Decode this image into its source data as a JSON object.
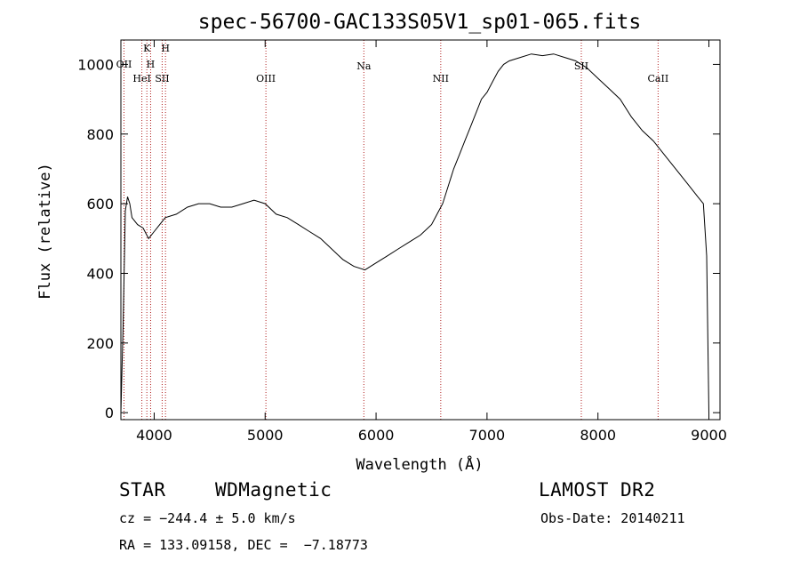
{
  "chart_data": {
    "type": "line",
    "title": "spec-56700-GAC133S05V1_sp01-065.fits",
    "xlabel": "Wavelength (Å)",
    "ylabel": "Flux (relative)",
    "xlim": [
      3700,
      9100
    ],
    "ylim": [
      -20,
      1070
    ],
    "xticks": [
      "4000",
      "5000",
      "6000",
      "7000",
      "8000",
      "9000"
    ],
    "yticks": [
      "0",
      "200",
      "400",
      "600",
      "800",
      "1000"
    ],
    "series": [
      {
        "x": [
          3700,
          3720,
          3740,
          3760,
          3780,
          3800,
          3850,
          3900,
          3950,
          4000,
          4100,
          4200,
          4300,
          4400,
          4500,
          4600,
          4700,
          4800,
          4900,
          5000,
          5100,
          5200,
          5300,
          5400,
          5500,
          5600,
          5700,
          5800,
          5900,
          6000,
          6100,
          6200,
          6300,
          6400,
          6500,
          6550,
          6600,
          6650,
          6700,
          6750,
          6800,
          6850,
          6900,
          6950,
          7000,
          7050,
          7100,
          7150,
          7200,
          7300,
          7400,
          7500,
          7600,
          7700,
          7800,
          7850,
          7900,
          8000,
          8100,
          8200,
          8300,
          8400,
          8500,
          8600,
          8700,
          8800,
          8900,
          8950,
          8980,
          9000
        ],
        "y": [
          0,
          250,
          580,
          620,
          600,
          560,
          540,
          530,
          500,
          520,
          560,
          570,
          590,
          600,
          600,
          590,
          590,
          600,
          610,
          600,
          570,
          560,
          540,
          520,
          500,
          470,
          440,
          420,
          410,
          430,
          450,
          470,
          490,
          510,
          540,
          570,
          600,
          650,
          700,
          740,
          780,
          820,
          860,
          900,
          920,
          950,
          980,
          1000,
          1010,
          1020,
          1030,
          1025,
          1030,
          1020,
          1010,
          1000,
          990,
          960,
          930,
          900,
          850,
          810,
          780,
          740,
          700,
          660,
          620,
          600,
          450,
          0
        ]
      }
    ],
    "lines": [
      {
        "x": 3728,
        "label": "OII"
      },
      {
        "x": 3889,
        "label": "HeI"
      },
      {
        "x": 3934,
        "label": "K"
      },
      {
        "x": 3968,
        "label": "H"
      },
      {
        "x": 4072,
        "label": "SII"
      },
      {
        "x": 4102,
        "label": "H"
      },
      {
        "x": 5007,
        "label": "OIII"
      },
      {
        "x": 5890,
        "label": "Na"
      },
      {
        "x": 6583,
        "label": "NII"
      },
      {
        "x": 7850,
        "label": "SII"
      },
      {
        "x": 8542,
        "label": "CaII"
      }
    ],
    "grid": false
  },
  "footer": {
    "class": "STAR",
    "subclass": "WDMagnetic",
    "survey": "LAMOST DR2",
    "cz": "cz = −244.4 ± 5.0 km/s",
    "obsdate": "Obs-Date: 20140211",
    "radec": "RA = 133.09158, DEC =  −7.18773"
  },
  "colors": {
    "spectrum": "#000000",
    "lines": "#b22222"
  }
}
